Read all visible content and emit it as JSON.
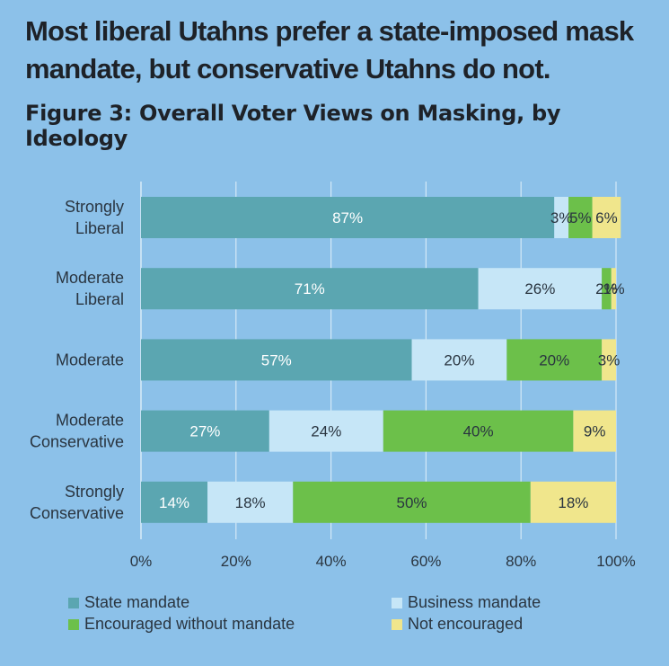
{
  "title": "Most liberal Utahns prefer a state-imposed mask mandate, but conservative Utahns do not.",
  "subtitle": "Figure 3: Overall Voter Views on Masking, by Ideology",
  "chart_data": {
    "type": "bar",
    "orientation": "horizontal",
    "stacked": true,
    "categories": [
      [
        "Strongly",
        "Liberal"
      ],
      [
        "Moderate",
        "Liberal"
      ],
      [
        "Moderate"
      ],
      [
        "Moderate",
        "Conservative"
      ],
      [
        "Strongly",
        "Conservative"
      ]
    ],
    "series": [
      {
        "name": "State mandate",
        "color": "#5ba6b1",
        "values": [
          87,
          71,
          57,
          27,
          14
        ]
      },
      {
        "name": "Business mandate",
        "color": "#c6e6f7",
        "values": [
          3,
          26,
          20,
          24,
          18
        ]
      },
      {
        "name": "Encouraged without mandate",
        "color": "#6cc04a",
        "values": [
          5,
          2,
          20,
          40,
          50
        ]
      },
      {
        "name": "Not encouraged",
        "color": "#f0e68c",
        "values": [
          6,
          1,
          3,
          9,
          18
        ]
      }
    ],
    "xlim": [
      0,
      100
    ],
    "xticks": [
      "0%",
      "20%",
      "40%",
      "60%",
      "80%",
      "100%"
    ],
    "grid": true,
    "legend": "bottom",
    "value_suffix": "%"
  }
}
